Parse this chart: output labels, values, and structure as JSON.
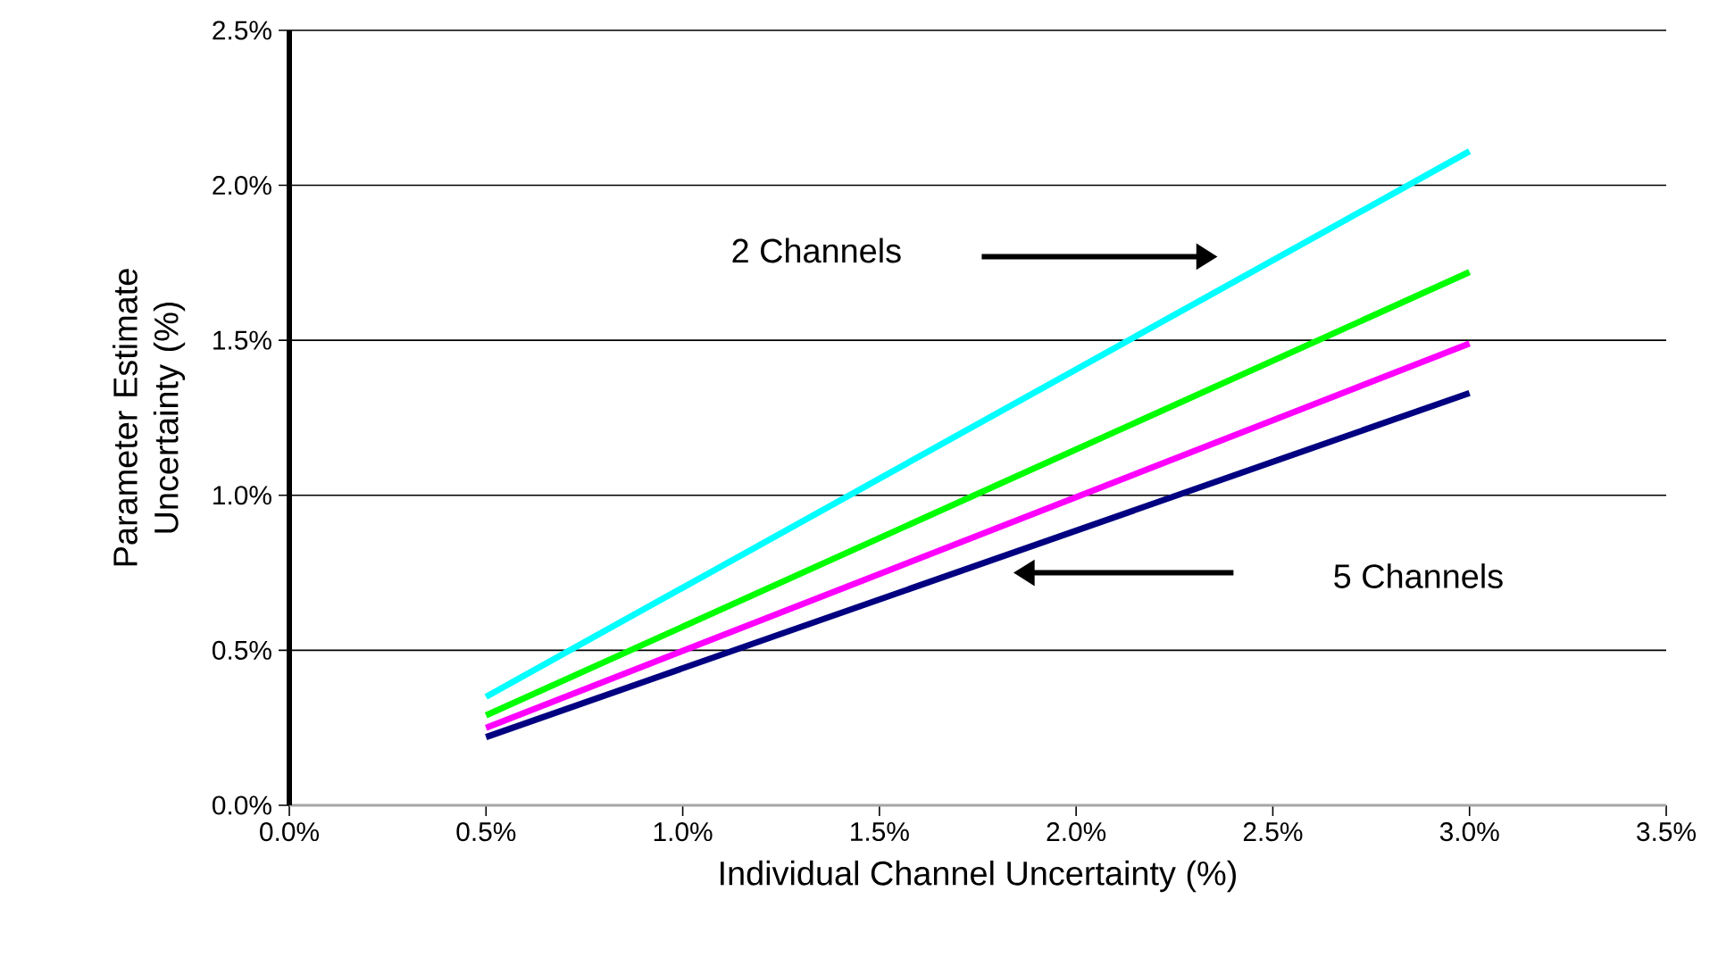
{
  "chart_data": {
    "type": "line",
    "x": [
      0.5,
      3.0
    ],
    "series": [
      {
        "color": "#00ffff",
        "values": [
          0.35,
          2.11
        ]
      },
      {
        "color": "#00ff00",
        "values": [
          0.29,
          1.72
        ]
      },
      {
        "color": "#ff00ff",
        "values": [
          0.25,
          1.49
        ]
      },
      {
        "color": "#000080",
        "values": [
          0.22,
          1.33
        ]
      }
    ],
    "xlabel": "Individual Channel Uncertainty (%)",
    "ylabel": "Parameter Estimate Uncertainty (%)",
    "xlim": [
      0,
      3.5
    ],
    "xticks": [
      {
        "value": 0,
        "label": "0.0%"
      },
      {
        "value": 0.5,
        "label": "0.5%"
      },
      {
        "value": 1,
        "label": "1.0%"
      },
      {
        "value": 1.5,
        "label": "1.5%"
      },
      {
        "value": 2,
        "label": "2.0%"
      },
      {
        "value": 2.5,
        "label": "2.5%"
      },
      {
        "value": 3,
        "label": "3.0%"
      },
      {
        "value": 3.5,
        "label": "3.5%"
      }
    ],
    "ylim": [
      0,
      2.5
    ],
    "yticks": [
      {
        "value": 0,
        "label": "0.0%"
      },
      {
        "value": 0.5,
        "label": "0.5%"
      },
      {
        "value": 1,
        "label": "1.0%"
      },
      {
        "value": 1.5,
        "label": "1.5%"
      },
      {
        "value": 2,
        "label": "2.0%"
      },
      {
        "value": 2.5,
        "label": "2.5%"
      }
    ],
    "grid": "y",
    "marker": "none",
    "line_style": "solid",
    "annotations": [
      "2 Channels",
      "5 Channels"
    ]
  }
}
